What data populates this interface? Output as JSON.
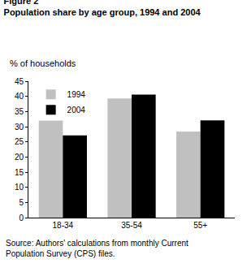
{
  "chart_data": {
    "type": "bar",
    "title": "Figure 2",
    "subtitle": "Population share by age group, 1994 and 2004",
    "y_label": "% of households",
    "annotations": [
      "Source: Authors' calculations from monthly Current Population Survey (CPS) files."
    ],
    "categories": [
      "18-34",
      "35-54",
      "55+"
    ],
    "series": [
      {
        "name": "1994",
        "color": "#c0c0c0",
        "values": [
          32.0,
          39.3,
          28.4
        ]
      },
      {
        "name": "2004",
        "color": "#000000",
        "values": [
          27.1,
          40.6,
          32.1
        ]
      }
    ],
    "ylim": [
      0,
      45
    ],
    "yticks": [
      0,
      5,
      10,
      15,
      20,
      25,
      30,
      35,
      40,
      45
    ],
    "grid": false,
    "legend": "upper left"
  }
}
